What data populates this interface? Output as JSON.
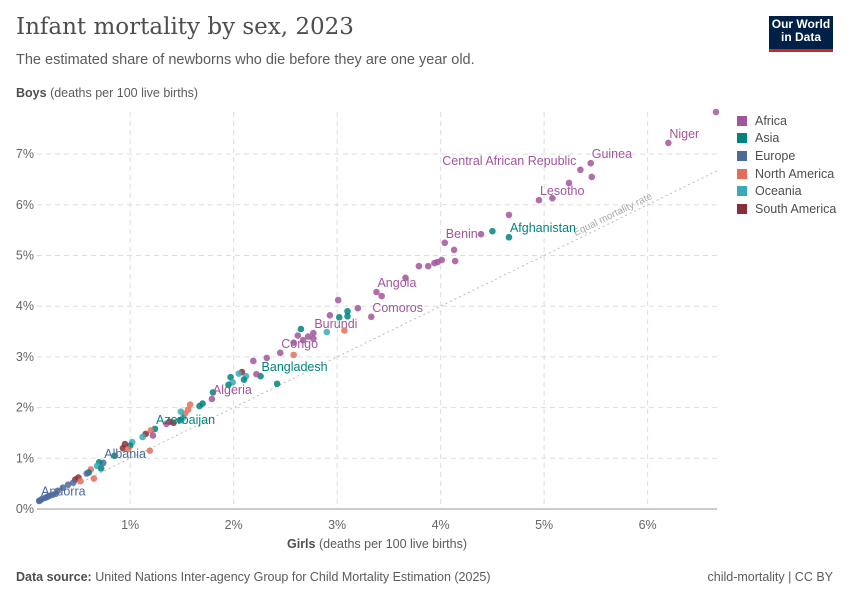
{
  "header": {
    "title": "Infant mortality by sex, 2023",
    "subtitle": "The estimated share of newborns who die before they are one year old.",
    "logo": "Our World in Data"
  },
  "footer": {
    "source_label": "Data source:",
    "source": "United Nations Inter-agency Group for Child Mortality Estimation (2025)",
    "license": "child-mortality | CC BY"
  },
  "chart_data": {
    "type": "scatter",
    "title": "Infant mortality by sex, 2023",
    "ylabel_bold": "Boys",
    "ylabel": "(deaths per 100 live births)",
    "xlabel_bold": "Girls",
    "xlabel": "(deaths per 100 live births)",
    "xlim": [
      0.1,
      6.67
    ],
    "ylim": [
      0,
      7.83
    ],
    "x_ticks": [
      "1%",
      "2%",
      "3%",
      "4%",
      "5%",
      "6%"
    ],
    "y_ticks": [
      "0%",
      "1%",
      "2%",
      "3%",
      "4%",
      "5%",
      "6%",
      "7%"
    ],
    "grid": true,
    "legend_position": "right",
    "reference_line": {
      "label": "Equal mortality rate",
      "slope": 1
    },
    "colors": {
      "Africa": "#a2559c",
      "Asia": "#00847e",
      "Europe": "#4c6a9c",
      "North America": "#e56e5a",
      "Oceania": "#38aaba",
      "South America": "#883039"
    },
    "legend": [
      "Africa",
      "Asia",
      "Europe",
      "North America",
      "Oceania",
      "South America"
    ],
    "points": [
      {
        "x": 6.66,
        "y": 7.83,
        "region": "Africa"
      },
      {
        "x": 6.2,
        "y": 7.22,
        "region": "Africa",
        "label": "Niger"
      },
      {
        "x": 5.45,
        "y": 6.82,
        "region": "Africa",
        "label": "Guinea"
      },
      {
        "x": 5.46,
        "y": 6.55,
        "region": "Africa"
      },
      {
        "x": 5.35,
        "y": 6.69,
        "region": "Africa",
        "label": "Central African Republic"
      },
      {
        "x": 5.24,
        "y": 6.43,
        "region": "Africa"
      },
      {
        "x": 4.95,
        "y": 6.09,
        "region": "Africa",
        "label": "Lesotho"
      },
      {
        "x": 5.08,
        "y": 6.13,
        "region": "Africa"
      },
      {
        "x": 4.66,
        "y": 5.8,
        "region": "Africa"
      },
      {
        "x": 4.66,
        "y": 5.36,
        "region": "Asia",
        "label": "Afghanistan"
      },
      {
        "x": 4.5,
        "y": 5.48,
        "region": "Asia"
      },
      {
        "x": 4.39,
        "y": 5.42,
        "region": "Africa"
      },
      {
        "x": 4.04,
        "y": 5.25,
        "region": "Africa",
        "label": "Benin"
      },
      {
        "x": 4.13,
        "y": 5.11,
        "region": "Africa"
      },
      {
        "x": 4.14,
        "y": 4.89,
        "region": "Africa"
      },
      {
        "x": 4.01,
        "y": 4.91,
        "region": "Africa"
      },
      {
        "x": 3.97,
        "y": 4.87,
        "region": "Africa"
      },
      {
        "x": 3.94,
        "y": 4.85,
        "region": "Africa"
      },
      {
        "x": 3.88,
        "y": 4.79,
        "region": "Africa"
      },
      {
        "x": 3.79,
        "y": 4.79,
        "region": "Africa"
      },
      {
        "x": 3.66,
        "y": 4.56,
        "region": "Africa"
      },
      {
        "x": 3.38,
        "y": 4.28,
        "region": "Africa",
        "label": "Angola"
      },
      {
        "x": 3.43,
        "y": 4.2,
        "region": "Africa"
      },
      {
        "x": 3.33,
        "y": 3.79,
        "region": "Africa",
        "label": "Comoros"
      },
      {
        "x": 3.2,
        "y": 3.96,
        "region": "Africa"
      },
      {
        "x": 3.01,
        "y": 4.12,
        "region": "Africa"
      },
      {
        "x": 3.1,
        "y": 3.9,
        "region": "Asia"
      },
      {
        "x": 3.1,
        "y": 3.8,
        "region": "Asia"
      },
      {
        "x": 3.02,
        "y": 3.78,
        "region": "Asia"
      },
      {
        "x": 2.93,
        "y": 3.82,
        "region": "Africa"
      },
      {
        "x": 3.07,
        "y": 3.52,
        "region": "North America"
      },
      {
        "x": 2.9,
        "y": 3.49,
        "region": "Oceania"
      },
      {
        "x": 2.77,
        "y": 3.47,
        "region": "Africa",
        "label": "Burundi"
      },
      {
        "x": 2.77,
        "y": 3.36,
        "region": "Africa"
      },
      {
        "x": 2.72,
        "y": 3.4,
        "region": "Africa"
      },
      {
        "x": 2.65,
        "y": 3.55,
        "region": "Asia"
      },
      {
        "x": 2.67,
        "y": 3.33,
        "region": "Africa"
      },
      {
        "x": 2.62,
        "y": 3.42,
        "region": "Africa"
      },
      {
        "x": 2.58,
        "y": 3.28,
        "region": "Africa"
      },
      {
        "x": 2.45,
        "y": 3.08,
        "region": "Africa",
        "label": "Congo"
      },
      {
        "x": 2.58,
        "y": 3.04,
        "region": "North America"
      },
      {
        "x": 2.32,
        "y": 2.98,
        "region": "Africa"
      },
      {
        "x": 2.19,
        "y": 2.92,
        "region": "Africa"
      },
      {
        "x": 2.26,
        "y": 2.62,
        "region": "Asia",
        "label": "Bangladesh"
      },
      {
        "x": 2.22,
        "y": 2.66,
        "region": "Africa"
      },
      {
        "x": 2.42,
        "y": 2.47,
        "region": "Asia"
      },
      {
        "x": 2.08,
        "y": 2.7,
        "region": "South America"
      },
      {
        "x": 2.05,
        "y": 2.67,
        "region": "Oceania"
      },
      {
        "x": 2.12,
        "y": 2.62,
        "region": "Oceania"
      },
      {
        "x": 2.1,
        "y": 2.55,
        "region": "Asia"
      },
      {
        "x": 1.97,
        "y": 2.6,
        "region": "Asia"
      },
      {
        "x": 1.99,
        "y": 2.5,
        "region": "Oceania"
      },
      {
        "x": 1.95,
        "y": 2.45,
        "region": "Asia"
      },
      {
        "x": 1.79,
        "y": 2.17,
        "region": "Africa",
        "label": "Algeria"
      },
      {
        "x": 1.8,
        "y": 2.3,
        "region": "Asia"
      },
      {
        "x": 1.7,
        "y": 2.08,
        "region": "Asia"
      },
      {
        "x": 1.67,
        "y": 2.03,
        "region": "Asia"
      },
      {
        "x": 1.58,
        "y": 2.06,
        "region": "North America"
      },
      {
        "x": 1.56,
        "y": 1.96,
        "region": "North America"
      },
      {
        "x": 1.53,
        "y": 1.88,
        "region": "North America"
      },
      {
        "x": 1.49,
        "y": 1.92,
        "region": "Oceania"
      },
      {
        "x": 1.51,
        "y": 1.8,
        "region": "Oceania"
      },
      {
        "x": 1.48,
        "y": 1.75,
        "region": "Asia"
      },
      {
        "x": 1.38,
        "y": 1.72,
        "region": "South America"
      },
      {
        "x": 1.42,
        "y": 1.7,
        "region": "South America"
      },
      {
        "x": 1.35,
        "y": 1.68,
        "region": "Africa"
      },
      {
        "x": 1.24,
        "y": 1.58,
        "region": "Asia",
        "label": "Azerbaijan"
      },
      {
        "x": 1.2,
        "y": 1.55,
        "region": "North America"
      },
      {
        "x": 1.22,
        "y": 1.45,
        "region": "Africa"
      },
      {
        "x": 1.15,
        "y": 1.48,
        "region": "South America"
      },
      {
        "x": 1.12,
        "y": 1.42,
        "region": "Oceania"
      },
      {
        "x": 1.19,
        "y": 1.15,
        "region": "North America"
      },
      {
        "x": 1.02,
        "y": 1.32,
        "region": "Oceania"
      },
      {
        "x": 1.0,
        "y": 1.25,
        "region": "Asia"
      },
      {
        "x": 0.95,
        "y": 1.28,
        "region": "South America"
      },
      {
        "x": 0.93,
        "y": 1.2,
        "region": "South America"
      },
      {
        "x": 0.98,
        "y": 1.18,
        "region": "North America"
      },
      {
        "x": 0.85,
        "y": 1.05,
        "region": "Asia"
      },
      {
        "x": 0.74,
        "y": 0.91,
        "region": "Europe",
        "label": "Albania"
      },
      {
        "x": 0.7,
        "y": 0.92,
        "region": "Asia"
      },
      {
        "x": 0.68,
        "y": 0.85,
        "region": "Oceania"
      },
      {
        "x": 0.72,
        "y": 0.8,
        "region": "Asia"
      },
      {
        "x": 0.62,
        "y": 0.78,
        "region": "North America"
      },
      {
        "x": 0.6,
        "y": 0.72,
        "region": "Asia"
      },
      {
        "x": 0.58,
        "y": 0.7,
        "region": "Europe"
      },
      {
        "x": 0.65,
        "y": 0.6,
        "region": "North America"
      },
      {
        "x": 0.5,
        "y": 0.62,
        "region": "South America"
      },
      {
        "x": 0.47,
        "y": 0.58,
        "region": "South America"
      },
      {
        "x": 0.52,
        "y": 0.55,
        "region": "North America"
      },
      {
        "x": 0.45,
        "y": 0.52,
        "region": "Europe"
      },
      {
        "x": 0.4,
        "y": 0.48,
        "region": "Europe"
      },
      {
        "x": 0.35,
        "y": 0.42,
        "region": "Europe"
      },
      {
        "x": 0.3,
        "y": 0.36,
        "region": "Europe"
      },
      {
        "x": 0.28,
        "y": 0.3,
        "region": "Europe"
      },
      {
        "x": 0.25,
        "y": 0.28,
        "region": "Europe"
      },
      {
        "x": 0.22,
        "y": 0.26,
        "region": "Europe"
      },
      {
        "x": 0.2,
        "y": 0.24,
        "region": "Europe"
      },
      {
        "x": 0.18,
        "y": 0.22,
        "region": "Europe"
      },
      {
        "x": 0.15,
        "y": 0.2,
        "region": "Europe"
      },
      {
        "x": 0.13,
        "y": 0.17,
        "region": "Europe",
        "label": "Andorra"
      },
      {
        "x": 0.12,
        "y": 0.16,
        "region": "Europe"
      }
    ]
  }
}
